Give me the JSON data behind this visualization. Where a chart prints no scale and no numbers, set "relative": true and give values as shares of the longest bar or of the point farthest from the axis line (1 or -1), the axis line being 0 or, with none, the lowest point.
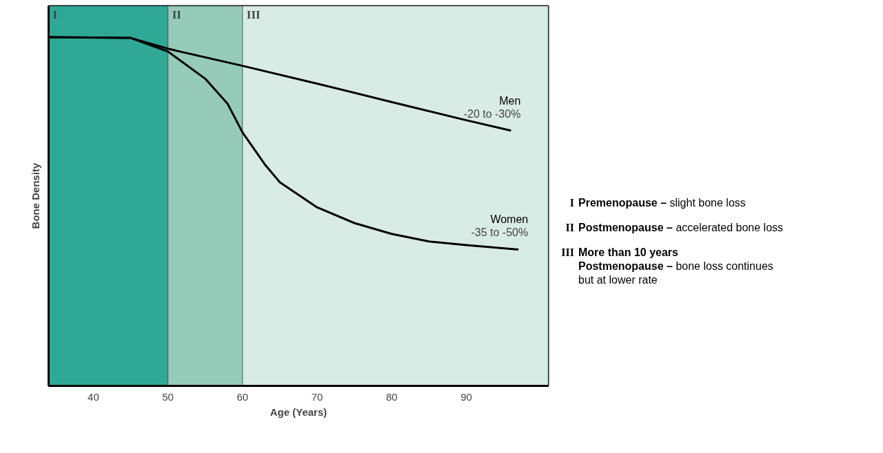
{
  "chart_data": {
    "type": "line",
    "relative": true,
    "xlabel": "Age (Years)",
    "ylabel": "Bone Density",
    "xlim": [
      34,
      101
    ],
    "xticks": [
      40,
      50,
      60,
      70,
      80,
      90
    ],
    "grid": false,
    "marker": "none",
    "line_style": "solid",
    "series": [
      {
        "name": "Men",
        "color": "#000000",
        "x": [
          34,
          45,
          50,
          60,
          70,
          80,
          90,
          96
        ],
        "values": [
          1.0,
          0.998,
          0.967,
          0.918,
          0.867,
          0.814,
          0.762,
          0.732
        ]
      },
      {
        "name": "Women",
        "color": "#000000",
        "x": [
          34,
          45,
          50,
          55,
          58,
          60,
          63,
          65,
          70,
          75,
          80,
          85,
          90,
          97
        ],
        "values": [
          1.0,
          0.998,
          0.959,
          0.881,
          0.809,
          0.727,
          0.635,
          0.584,
          0.512,
          0.467,
          0.436,
          0.414,
          0.404,
          0.391
        ]
      }
    ],
    "bands": [
      {
        "axis": "x",
        "from": 34,
        "to": 50,
        "label": "I",
        "color": "#2fa896"
      },
      {
        "axis": "x",
        "from": 50,
        "to": 60,
        "label": "II",
        "color": "#96cbb9"
      },
      {
        "axis": "x",
        "from": 60,
        "to": 101,
        "label": "III",
        "color": "#d9ebe5"
      }
    ],
    "annotations": [
      "-20 to -30%",
      "-35 to -50%",
      "I Premenopause – slight bone loss",
      "II Postmenopause – accelerated bone loss",
      "III More than 10 years\nPostmenopause – bone loss continues but at lower rate"
    ]
  }
}
